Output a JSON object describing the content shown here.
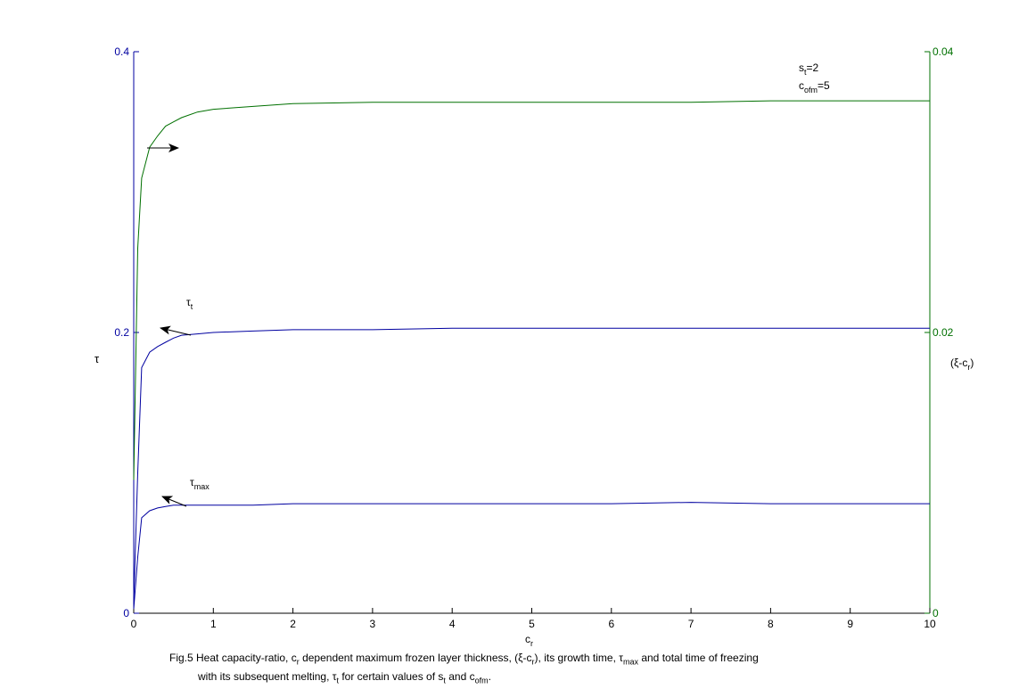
{
  "chart_data": {
    "type": "line",
    "xlabel": "c",
    "xlabel_sub": "r",
    "ylabel_left": "τ",
    "ylabel_right": "(ξ-c",
    "ylabel_right_sub": "r",
    "ylabel_right_close": ")",
    "xlim": [
      0,
      10
    ],
    "ylim_left": [
      0,
      0.4
    ],
    "ylim_right": [
      0,
      0.04
    ],
    "x_ticks": [
      "0",
      "1",
      "2",
      "3",
      "4",
      "5",
      "6",
      "7",
      "8",
      "9",
      "10"
    ],
    "y_left_ticks": [
      "0",
      "0.2",
      "0.4"
    ],
    "y_right_ticks": [
      "0",
      "0.02",
      "0.04"
    ],
    "grid": false,
    "colors": {
      "left_axis": "#0000a0",
      "right_axis": "#007000",
      "arrow": "#000000"
    },
    "series": [
      {
        "key": "xi_minus_cr",
        "axis": "right",
        "color": "#007000",
        "x": [
          0,
          0.05,
          0.1,
          0.2,
          0.3,
          0.4,
          0.5,
          0.6,
          0.8,
          1,
          1.5,
          2,
          3,
          4,
          5,
          6,
          7,
          8,
          9,
          10
        ],
        "y": [
          0.0095,
          0.026,
          0.031,
          0.0332,
          0.034,
          0.0347,
          0.035,
          0.0353,
          0.0357,
          0.0359,
          0.0361,
          0.0363,
          0.0364,
          0.0364,
          0.0364,
          0.0364,
          0.0364,
          0.0365,
          0.0365,
          0.0365
        ]
      },
      {
        "key": "tau_t",
        "axis": "left",
        "color": "#0000a0",
        "x": [
          0,
          0.05,
          0.1,
          0.2,
          0.3,
          0.4,
          0.5,
          0.6,
          0.8,
          1,
          1.5,
          2,
          3,
          4,
          5,
          6,
          7,
          8,
          9,
          10
        ],
        "y": [
          0.008,
          0.1,
          0.175,
          0.186,
          0.19,
          0.193,
          0.196,
          0.198,
          0.199,
          0.2,
          0.201,
          0.202,
          0.202,
          0.203,
          0.203,
          0.203,
          0.203,
          0.203,
          0.203,
          0.203
        ]
      },
      {
        "key": "tau_max",
        "axis": "left",
        "color": "#0000a0",
        "x": [
          0,
          0.05,
          0.1,
          0.2,
          0.3,
          0.4,
          0.5,
          0.6,
          0.8,
          1,
          1.5,
          2,
          3,
          4,
          5,
          6,
          7,
          8,
          9,
          10
        ],
        "y": [
          0.003,
          0.04,
          0.068,
          0.073,
          0.075,
          0.076,
          0.077,
          0.077,
          0.077,
          0.077,
          0.077,
          0.078,
          0.078,
          0.078,
          0.078,
          0.078,
          0.079,
          0.078,
          0.078,
          0.078
        ]
      }
    ],
    "annotations": {
      "tau_t_label": "τ",
      "tau_t_sub": "t",
      "tau_max_label": "τ",
      "tau_max_sub": "max",
      "st_label": "s",
      "st_sub": "t",
      "st_value": "=2",
      "cofm_label": "c",
      "cofm_sub": "ofm",
      "cofm_value": "=5"
    }
  },
  "caption": {
    "line1_a": "Fig.5 Heat capacity-ratio, c",
    "line1_b": "r",
    "line1_c": " dependent maximum frozen layer thickness, (ξ-c",
    "line1_d": "r",
    "line1_e": "), its growth time, τ",
    "line1_f": "max",
    "line1_g": " and total time of freezing",
    "line2_a": "with its subsequent melting, τ",
    "line2_b": "t",
    "line2_c": " for certain values of s",
    "line2_d": "t",
    "line2_e": " and c",
    "line2_f": "ofm",
    "line2_g": "."
  }
}
